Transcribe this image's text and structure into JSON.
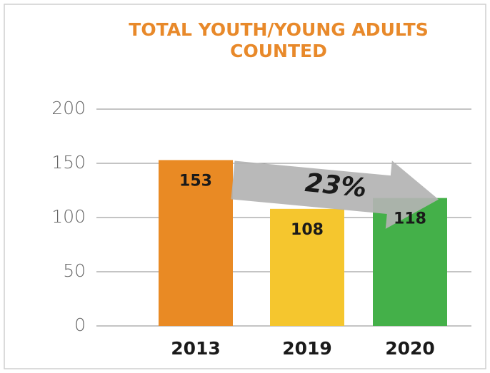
{
  "chart_data": {
    "type": "bar",
    "title": "TOTAL YOUTH/YOUNG ADULTS COUNTED",
    "categories": [
      "2013",
      "2019",
      "2020"
    ],
    "values": [
      153,
      108,
      118
    ],
    "colors": [
      "#e98a24",
      "#f5c62e",
      "#44b049"
    ],
    "annotation": "23%",
    "ylim": [
      0,
      200
    ],
    "yticks": [
      0,
      50,
      100,
      150,
      200
    ],
    "grid": true
  }
}
